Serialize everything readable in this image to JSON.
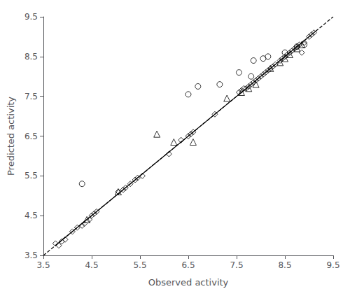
{
  "chart_data": {
    "type": "scatter",
    "xlabel": "Observed activity",
    "ylabel": "Predicted activity",
    "xlim": [
      3.5,
      9.5
    ],
    "ylim": [
      3.5,
      9.5
    ],
    "xticks": [
      3.5,
      4.5,
      5.5,
      6.5,
      7.5,
      8.5,
      9.5
    ],
    "yticks": [
      3.5,
      4.5,
      5.5,
      6.5,
      7.5,
      8.5,
      9.5
    ],
    "grid": false,
    "series": [
      {
        "type": "line",
        "line_style": "dashed",
        "color": "black",
        "x": [
          3.5,
          9.5
        ],
        "values": [
          3.5,
          9.5
        ]
      },
      {
        "type": "line",
        "line_style": "solid",
        "color": "black",
        "x": [
          3.75,
          9.15
        ],
        "values": [
          3.75,
          9.15
        ]
      },
      {
        "type": "scatter",
        "marker": "diamond",
        "color": "black",
        "x": [
          3.75,
          3.82,
          3.88,
          3.95,
          4.1,
          4.2,
          4.3,
          4.35,
          4.45,
          4.5,
          4.55,
          4.6,
          5.05,
          5.15,
          5.2,
          5.3,
          5.4,
          5.45,
          5.55,
          6.1,
          6.35,
          6.5,
          6.55,
          6.6,
          7.05,
          7.55,
          7.6,
          7.65,
          7.7,
          7.75,
          7.8,
          7.85,
          7.9,
          7.95,
          8.0,
          8.05,
          8.1,
          8.15,
          8.2,
          8.25,
          8.3,
          8.4,
          8.45,
          8.5,
          8.55,
          8.6,
          8.65,
          8.7,
          8.75,
          8.8,
          8.85,
          8.9,
          9.0,
          9.05,
          9.1
        ],
        "values": [
          3.8,
          3.75,
          3.85,
          3.9,
          4.1,
          4.2,
          4.25,
          4.3,
          4.4,
          4.5,
          4.55,
          4.6,
          5.1,
          5.15,
          5.2,
          5.3,
          5.4,
          5.45,
          5.5,
          6.05,
          6.4,
          6.5,
          6.55,
          6.6,
          7.05,
          7.6,
          7.65,
          7.7,
          7.7,
          7.75,
          7.8,
          7.85,
          7.9,
          7.95,
          8.0,
          8.05,
          8.1,
          8.15,
          8.2,
          8.25,
          8.3,
          8.4,
          8.45,
          8.5,
          8.55,
          8.6,
          8.65,
          8.7,
          8.75,
          8.8,
          8.6,
          8.85,
          9.0,
          9.05,
          9.1
        ]
      },
      {
        "type": "scatter",
        "marker": "circle",
        "color": "black",
        "x": [
          4.3,
          6.5,
          6.7,
          7.15,
          7.55,
          7.8,
          7.85,
          8.05,
          8.15,
          8.5,
          8.75,
          8.9
        ],
        "values": [
          5.3,
          7.55,
          7.75,
          7.8,
          8.1,
          8.0,
          8.4,
          8.45,
          8.5,
          8.6,
          8.75,
          8.8
        ]
      },
      {
        "type": "scatter",
        "marker": "triangle",
        "color": "black",
        "x": [
          4.4,
          5.05,
          5.85,
          6.2,
          6.6,
          7.3,
          7.6,
          7.75,
          7.9,
          8.2,
          8.4,
          8.5,
          8.6,
          8.75,
          8.85
        ],
        "values": [
          4.4,
          5.1,
          6.55,
          6.35,
          6.35,
          7.45,
          7.6,
          7.7,
          7.8,
          8.2,
          8.35,
          8.45,
          8.55,
          8.7,
          8.8
        ]
      }
    ]
  }
}
